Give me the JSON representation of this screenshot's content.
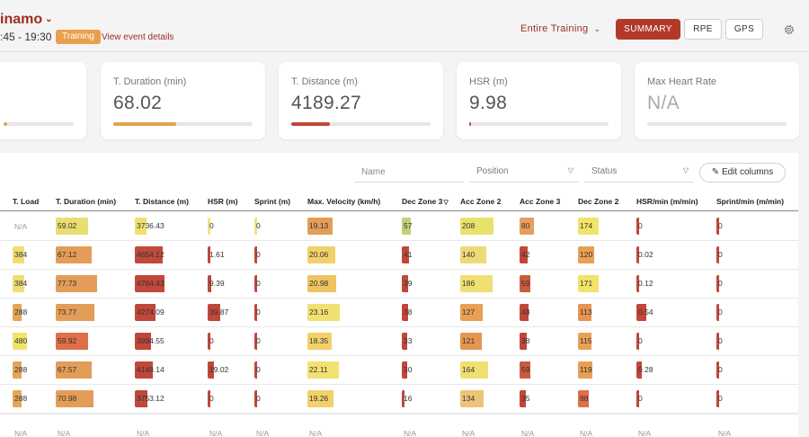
{
  "header": {
    "title": "inamo",
    "title_chevron": "⌄",
    "time": ":45 - 19:30",
    "badge": "Training",
    "event_link": "View event details",
    "range": "Entire Training",
    "range_chevron": "⌄",
    "btn_summary": "SUMMARY",
    "btn_rpe": "RPE",
    "btn_gps": "GPS"
  },
  "cards": [
    {
      "label": "T. Duration (min)",
      "value": "68.02",
      "progress": 0.45,
      "color": "#e0a44f"
    },
    {
      "label": "T. Distance (m)",
      "value": "4189.27",
      "progress": 0.28,
      "color": "#c0473a"
    },
    {
      "label": "HSR (m)",
      "value": "9.98",
      "progress": 0.01,
      "color": "#c0473a"
    },
    {
      "label": "Max Heart Rate",
      "value": "N/A",
      "progress": 0,
      "color": "#cccccc"
    }
  ],
  "card0_progress": 0.05,
  "filters": {
    "name_placeholder": "Name",
    "position_label": "Position",
    "status_label": "Status",
    "caret": "▽",
    "edit_columns": "✎ Edit columns"
  },
  "columns": [
    "T. Load",
    "T. Duration (min)",
    "T. Distance (m)",
    "HSR (m)",
    "Sprint (m)",
    "Max. Velocity (km/h)",
    "Dec Zone 3",
    "Acc Zone 2",
    "Acc Zone 3",
    "Dec Zone 2",
    "HSR/min (m/min)",
    "Sprint/min (m/min)"
  ],
  "sort_marker": "▽",
  "rows": [
    [
      "N/A",
      "59.02",
      "3736.43",
      "0",
      "0",
      "19.13",
      "57",
      "208",
      "80",
      "174",
      "0",
      "0"
    ],
    [
      "384",
      "67.12",
      "4654.12",
      "1.61",
      "0",
      "20.06",
      "41",
      "140",
      "42",
      "120",
      "0.02",
      "0"
    ],
    [
      "384",
      "77.73",
      "4764.43",
      "9.39",
      "0",
      "20.98",
      "39",
      "186",
      "59",
      "171",
      "0.12",
      "0"
    ],
    [
      "288",
      "73.77",
      "4274.09",
      "39.87",
      "0",
      "23.16",
      "38",
      "127",
      "48",
      "113",
      "0.54",
      "0"
    ],
    [
      "480",
      "59.92",
      "3994.55",
      "0",
      "0",
      "18.35",
      "33",
      "121",
      "38",
      "115",
      "0",
      "0"
    ],
    [
      "288",
      "67.57",
      "4148.14",
      "19.02",
      "0",
      "22.11",
      "30",
      "164",
      "59",
      "119",
      "0.28",
      "0"
    ],
    [
      "288",
      "70.98",
      "3753.12",
      "0",
      "0",
      "19.26",
      "16",
      "134",
      "35",
      "88",
      "0",
      "0"
    ],
    [
      "N/A",
      "N/A",
      "N/A",
      "N/A",
      "N/A",
      "N/A",
      "N/A",
      "N/A",
      "N/A",
      "N/A",
      "N/A",
      "N/A"
    ]
  ],
  "heat": [
    [
      null,
      0.62,
      0.22,
      0.0,
      0.0,
      0.36,
      0.2,
      0.62,
      0.48,
      0.45,
      0.0,
      0.0
    ],
    [
      0.4,
      0.7,
      0.52,
      0.02,
      0.0,
      0.4,
      0.15,
      0.48,
      0.28,
      0.36,
      0.02,
      0.0
    ],
    [
      0.4,
      0.8,
      0.55,
      0.06,
      0.0,
      0.41,
      0.14,
      0.6,
      0.38,
      0.45,
      0.05,
      0.0
    ],
    [
      0.3,
      0.75,
      0.38,
      0.24,
      0.0,
      0.47,
      0.13,
      0.42,
      0.32,
      0.3,
      0.22,
      0.0
    ],
    [
      0.5,
      0.62,
      0.3,
      0.0,
      0.0,
      0.35,
      0.12,
      0.4,
      0.25,
      0.3,
      0.0,
      0.0
    ],
    [
      0.3,
      0.7,
      0.33,
      0.12,
      0.0,
      0.45,
      0.11,
      0.52,
      0.38,
      0.32,
      0.11,
      0.0
    ],
    [
      0.3,
      0.73,
      0.24,
      0.0,
      0.0,
      0.38,
      0.06,
      0.44,
      0.22,
      0.24,
      0.0,
      0.0
    ]
  ],
  "heat_colors": [
    [
      "#e6c65a",
      "#eadd72",
      "#f0e070",
      "#f2e37a",
      "#f1e07e",
      "#e39d58",
      "#c3cf7a",
      "#e9e16e",
      "#e4a05a",
      "#f2e36b",
      "#c0473a",
      "#c0473a"
    ],
    [
      "#f0de74",
      "#e39d58",
      "#bf4a3a",
      "#c0473a",
      "#c0473a",
      "#f2d06a",
      "#c0473a",
      "#eed977",
      "#c0473a",
      "#e8a054",
      "#c0473a",
      "#c0473a"
    ],
    [
      "#f0de74",
      "#e39d58",
      "#c0473a",
      "#c0473a",
      "#c0473a",
      "#efc360",
      "#c0473a",
      "#f0df72",
      "#c95b3f",
      "#f2e36b",
      "#c0473a",
      "#c0473a"
    ],
    [
      "#e3a558",
      "#e39d58",
      "#c0473a",
      "#c0473a",
      "#c0473a",
      "#f2e170",
      "#c0473a",
      "#e8a054",
      "#c0473a",
      "#e6944f",
      "#c0473a",
      "#c0473a"
    ],
    [
      "#f2e36b",
      "#e06e48",
      "#c0473a",
      "#c0473a",
      "#c0473a",
      "#f2d06a",
      "#c0473a",
      "#e4974f",
      "#c0473a",
      "#e8a054",
      "#c0473a",
      "#c0473a"
    ],
    [
      "#e3a558",
      "#e39d58",
      "#c0473a",
      "#c0473a",
      "#c0473a",
      "#f2e170",
      "#c0473a",
      "#f0df72",
      "#c95b3f",
      "#e8a054",
      "#c0473a",
      "#c0473a"
    ],
    [
      "#e3a558",
      "#e39d58",
      "#c0473a",
      "#c0473a",
      "#c0473a",
      "#f2d06a",
      "#c0473a",
      "#efc377",
      "#c0473a",
      "#e06e48",
      "#c0473a",
      "#c0473a"
    ]
  ]
}
